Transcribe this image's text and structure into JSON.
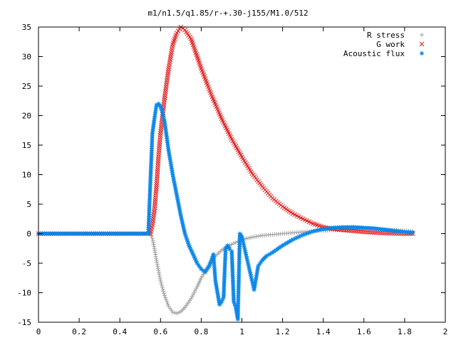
{
  "chart_data": {
    "type": "scatter",
    "title": "m1/n1.5/q1.85/r-+.30-j155/M1.0/512",
    "xlabel": "",
    "ylabel": "",
    "xlim": [
      0,
      2
    ],
    "ylim": [
      -15,
      35
    ],
    "x_ticks": [
      0,
      0.2,
      0.4,
      0.6,
      0.8,
      1,
      1.2,
      1.4,
      1.6,
      1.8,
      2
    ],
    "x_tick_labels": [
      "0",
      "0.2",
      "0.4",
      "0.6",
      "0.8",
      "1",
      "1.2",
      "1.4",
      "1.6",
      "1.8",
      "2"
    ],
    "y_ticks": [
      -15,
      -10,
      -5,
      0,
      5,
      10,
      15,
      20,
      25,
      30,
      35
    ],
    "y_tick_labels": [
      "-15",
      "-10",
      "-5",
      "0",
      "5",
      "10",
      "15",
      "20",
      "25",
      "30",
      "35"
    ],
    "grid": false,
    "legend_position": "top-right",
    "series": [
      {
        "name": "R stress",
        "marker": "plus",
        "color": "#a0a0a0",
        "x": [
          0.0,
          0.1,
          0.2,
          0.3,
          0.4,
          0.5,
          0.55,
          0.56,
          0.57,
          0.58,
          0.6,
          0.62,
          0.64,
          0.66,
          0.68,
          0.7,
          0.72,
          0.75,
          0.78,
          0.8,
          0.85,
          0.9,
          0.95,
          1.0,
          1.05,
          1.1,
          1.2,
          1.3,
          1.4,
          1.5,
          1.6,
          1.7,
          1.8,
          1.84
        ],
        "y": [
          0.0,
          0.0,
          0.0,
          0.0,
          0.0,
          0.0,
          0.0,
          -0.8,
          -2.5,
          -4.5,
          -8.0,
          -10.5,
          -12.3,
          -13.3,
          -13.5,
          -13.2,
          -12.5,
          -11.0,
          -9.0,
          -7.5,
          -4.5,
          -2.8,
          -1.8,
          -1.0,
          -0.6,
          -0.3,
          0.0,
          0.3,
          0.5,
          0.7,
          0.8,
          0.7,
          0.5,
          0.4
        ]
      },
      {
        "name": "G work",
        "marker": "cross",
        "color": "#e02020",
        "x": [
          0.0,
          0.1,
          0.2,
          0.3,
          0.4,
          0.5,
          0.55,
          0.56,
          0.57,
          0.58,
          0.59,
          0.6,
          0.62,
          0.64,
          0.66,
          0.68,
          0.7,
          0.72,
          0.75,
          0.78,
          0.8,
          0.85,
          0.9,
          0.95,
          1.0,
          1.05,
          1.1,
          1.15,
          1.2,
          1.25,
          1.3,
          1.35,
          1.4,
          1.45,
          1.5,
          1.6,
          1.7,
          1.8,
          1.84
        ],
        "y": [
          0.0,
          0.0,
          0.0,
          0.0,
          0.0,
          0.0,
          0.0,
          1.5,
          4.0,
          8.0,
          13.0,
          17.0,
          23.0,
          28.0,
          32.0,
          34.0,
          35.0,
          34.5,
          33.0,
          30.0,
          28.0,
          23.5,
          19.5,
          16.0,
          13.0,
          10.2,
          8.0,
          6.0,
          4.6,
          3.4,
          2.5,
          1.7,
          1.1,
          0.8,
          0.6,
          0.3,
          0.1,
          0.0,
          0.0
        ]
      },
      {
        "name": "Acoustic flux",
        "marker": "star",
        "color": "#0a86e8",
        "x": [
          0.0,
          0.1,
          0.2,
          0.3,
          0.4,
          0.5,
          0.54,
          0.55,
          0.56,
          0.57,
          0.58,
          0.59,
          0.6,
          0.61,
          0.62,
          0.63,
          0.64,
          0.66,
          0.68,
          0.7,
          0.72,
          0.74,
          0.76,
          0.78,
          0.8,
          0.82,
          0.84,
          0.86,
          0.87,
          0.88,
          0.89,
          0.9,
          0.91,
          0.92,
          0.93,
          0.94,
          0.95,
          0.96,
          0.97,
          0.98,
          0.99,
          1.0,
          1.01,
          1.02,
          1.03,
          1.04,
          1.05,
          1.06,
          1.08,
          1.1,
          1.12,
          1.15,
          1.2,
          1.25,
          1.3,
          1.35,
          1.4,
          1.45,
          1.5,
          1.55,
          1.6,
          1.65,
          1.7,
          1.75,
          1.8,
          1.84
        ],
        "y": [
          0.0,
          0.0,
          0.0,
          0.0,
          0.0,
          0.0,
          0.0,
          8.7,
          17.0,
          19.5,
          21.8,
          22.0,
          21.5,
          20.5,
          19.0,
          16.5,
          14.0,
          10.0,
          6.5,
          3.0,
          0.0,
          -2.0,
          -3.5,
          -5.0,
          -6.0,
          -6.5,
          -5.5,
          -3.5,
          -8.0,
          -10.0,
          -12.0,
          -11.5,
          -10.8,
          -2.5,
          -2.0,
          -2.6,
          -3.0,
          -11.5,
          -12.5,
          -14.5,
          0.0,
          -0.5,
          -2.0,
          -3.5,
          -5.0,
          -6.5,
          -8.0,
          -9.5,
          -5.5,
          -4.5,
          -3.8,
          -3.2,
          -2.0,
          -1.0,
          -0.2,
          0.4,
          0.8,
          1.0,
          1.1,
          1.1,
          1.0,
          0.9,
          0.7,
          0.5,
          0.3,
          0.2
        ]
      }
    ]
  }
}
